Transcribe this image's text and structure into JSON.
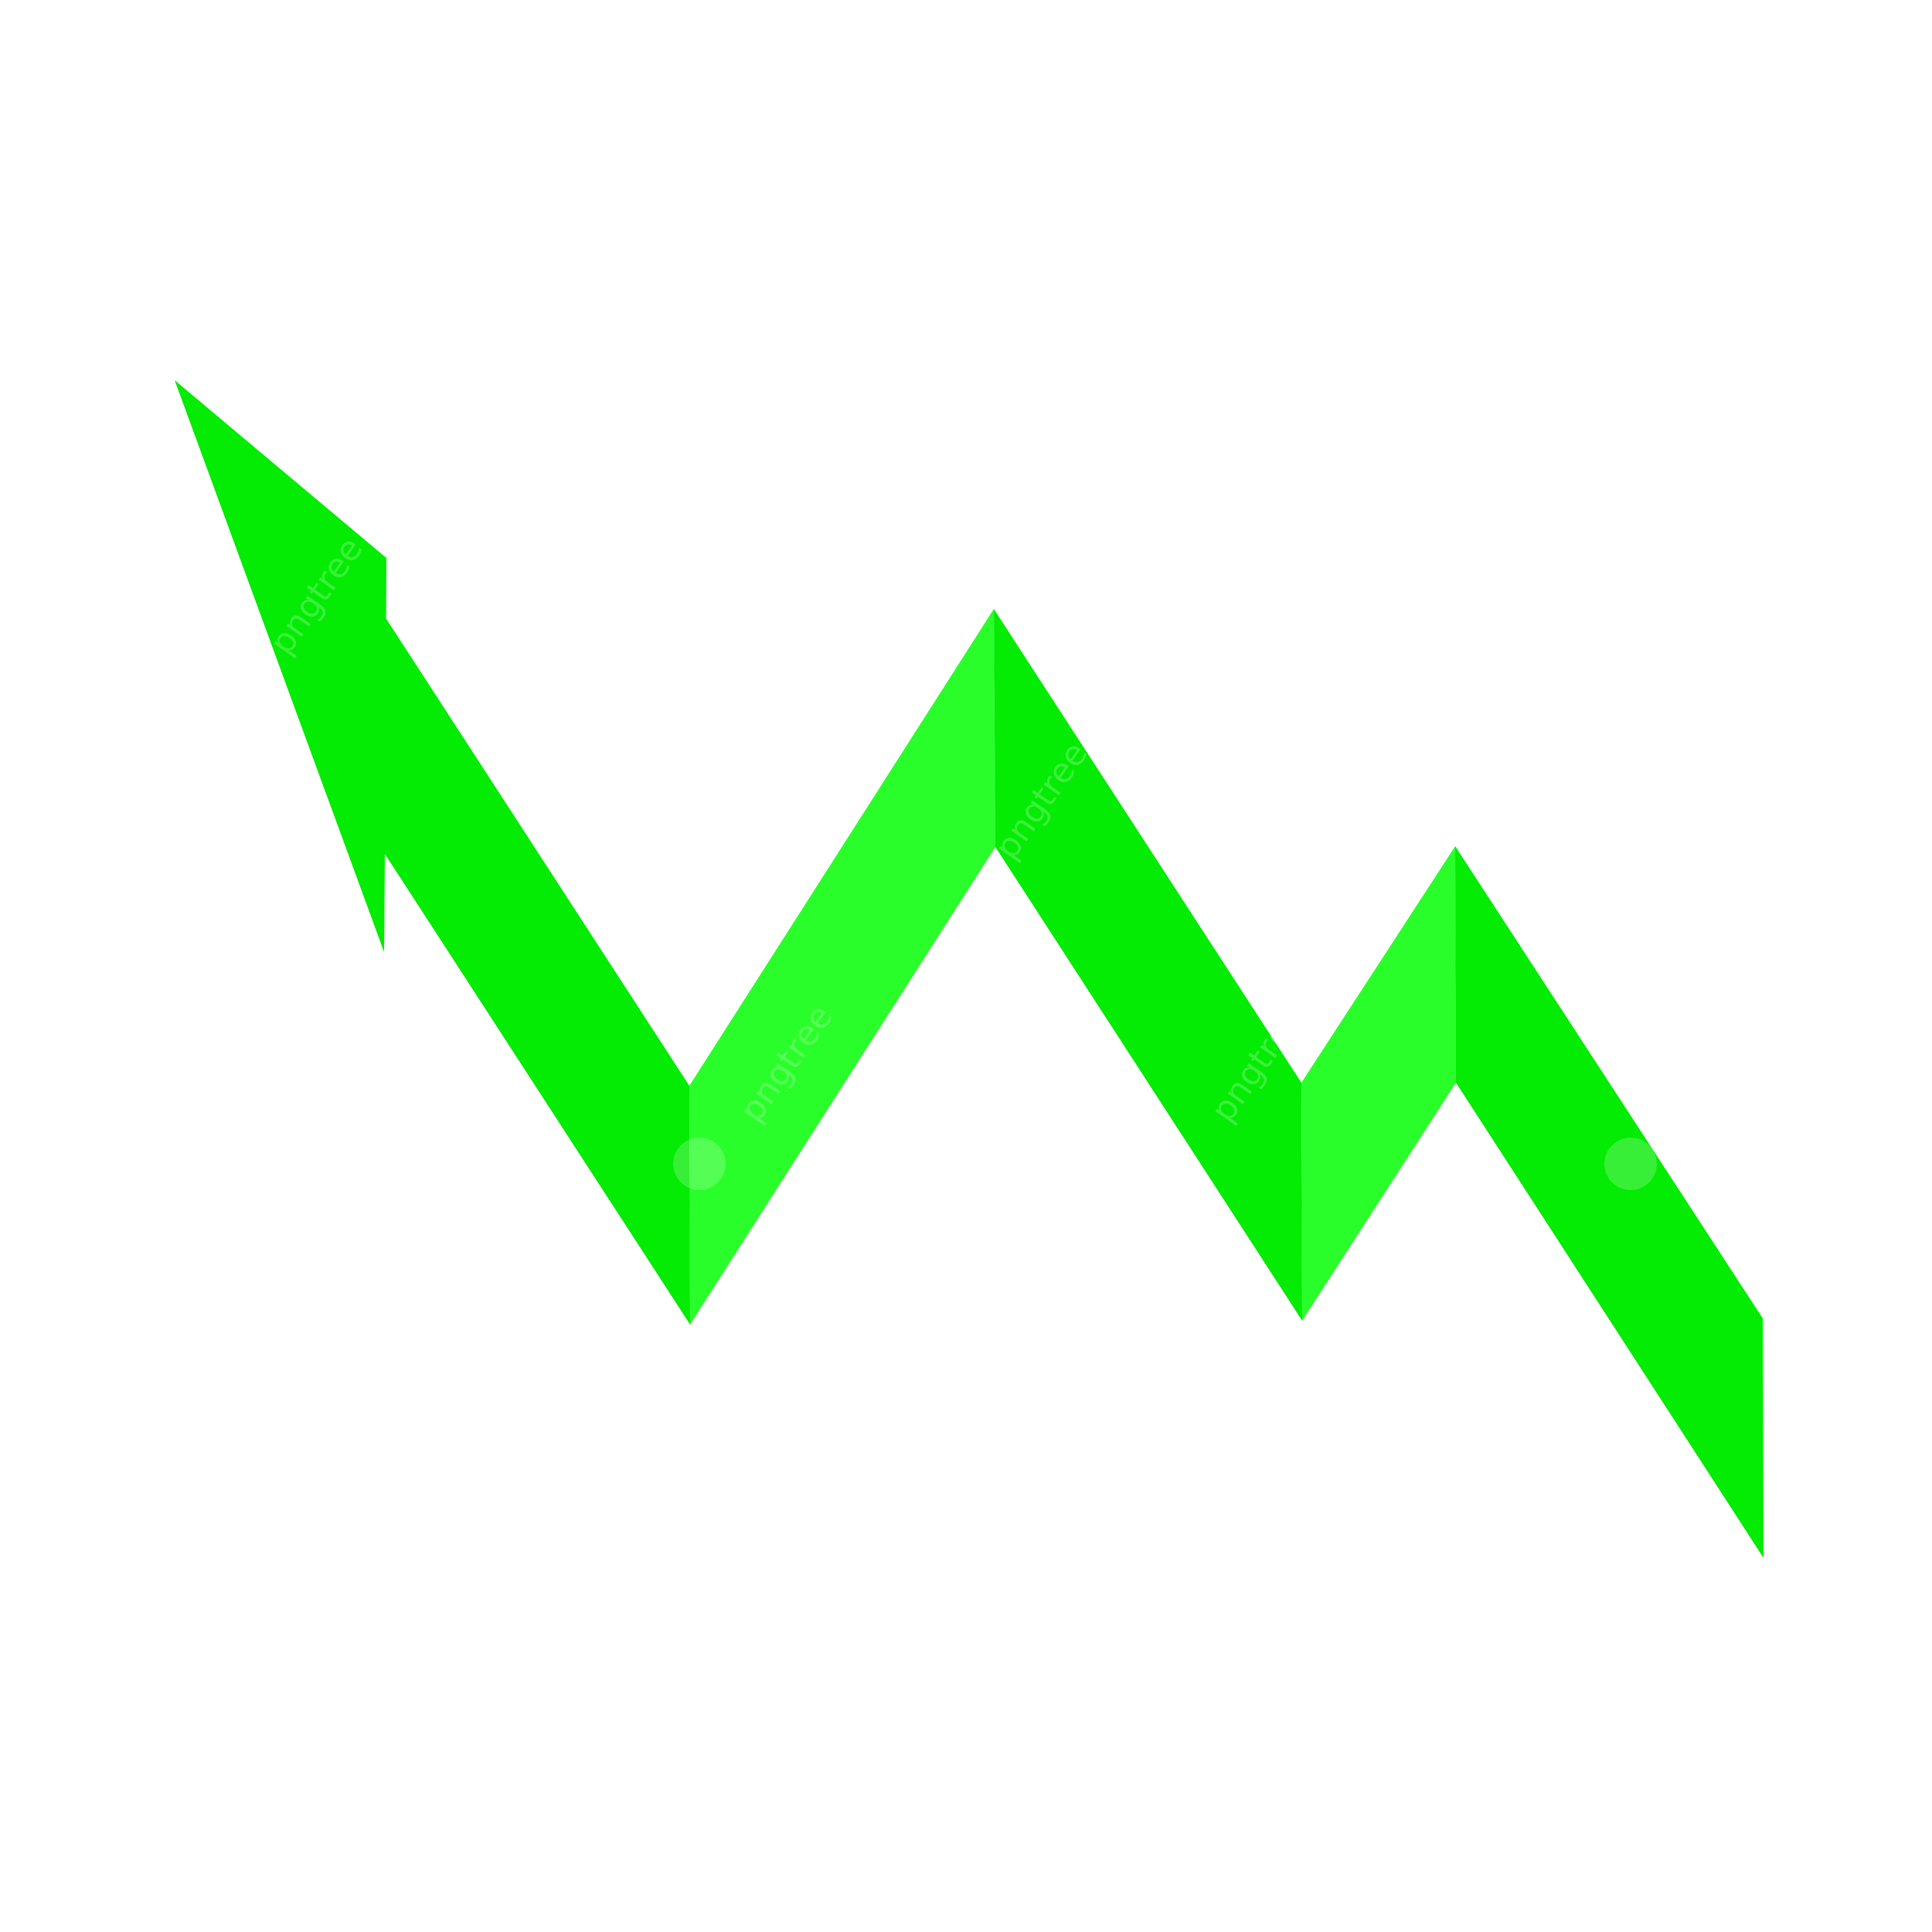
{
  "illustration": {
    "icon": "zigzag-trend-arrow-icon",
    "arrow_direction": "up-left",
    "colors": {
      "background": "#ffffff",
      "band_dark": "#04eb04",
      "band_light": "#2afe2a"
    }
  },
  "watermark": {
    "text": "pngtree"
  }
}
